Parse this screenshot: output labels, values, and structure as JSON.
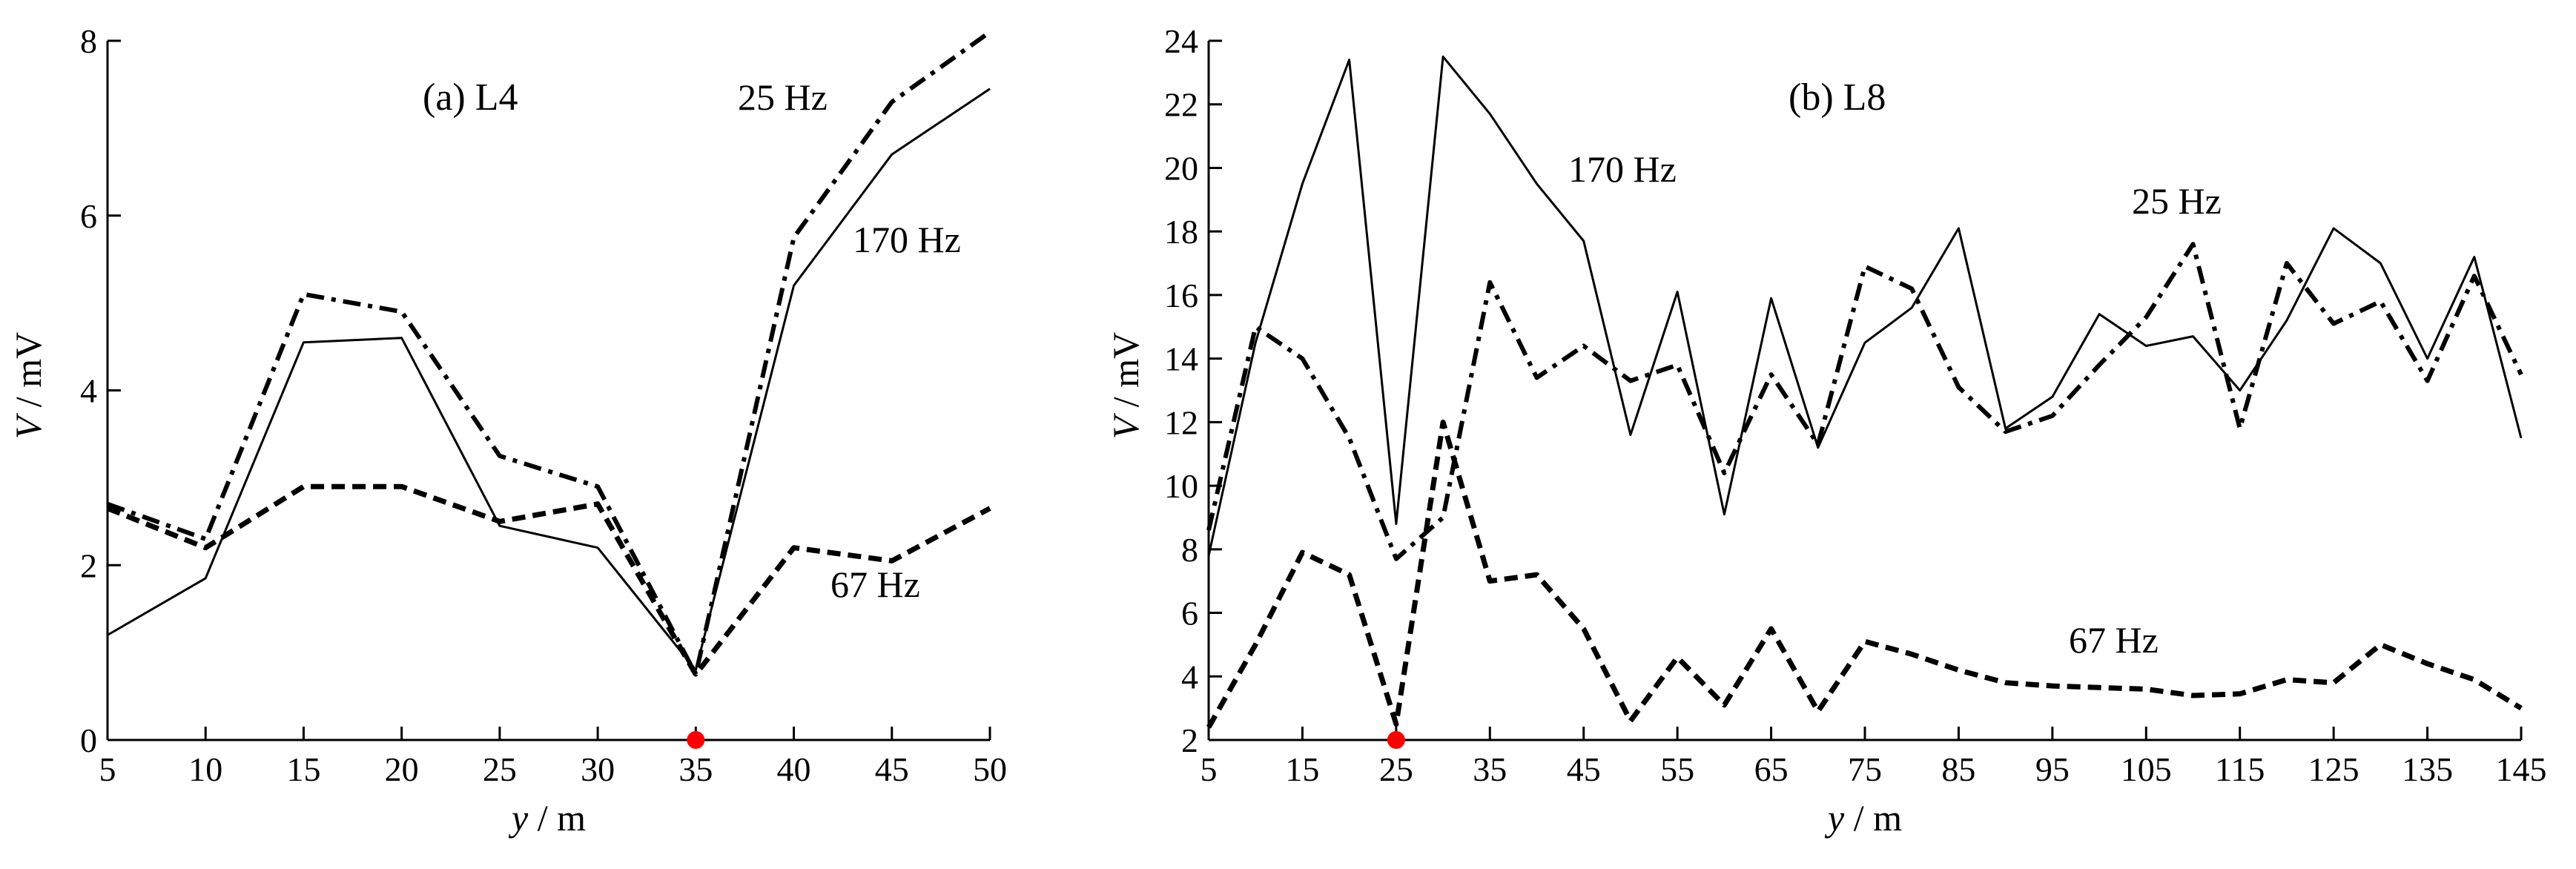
{
  "chart_data": [
    {
      "type": "line",
      "title": "(a) L4",
      "xlabel_var": "y",
      "xlabel_unit": " / m",
      "ylabel_var": "V",
      "ylabel_unit": " / mV",
      "xlim": [
        5,
        50
      ],
      "ylim": [
        0,
        8
      ],
      "xticks": [
        5,
        10,
        15,
        20,
        25,
        30,
        35,
        40,
        45,
        50
      ],
      "yticks": [
        0,
        2,
        4,
        6,
        8
      ],
      "x": [
        5,
        10,
        15,
        20,
        25,
        30,
        35,
        40,
        45,
        50
      ],
      "series": [
        {
          "name": "25 Hz",
          "style": "dashdot",
          "values": [
            2.7,
            2.3,
            5.1,
            4.9,
            3.25,
            2.9,
            0.75,
            5.75,
            7.3,
            8.1
          ]
        },
        {
          "name": "170 Hz",
          "style": "solid",
          "values": [
            1.2,
            1.85,
            4.55,
            4.6,
            2.45,
            2.2,
            0.8,
            5.2,
            6.7,
            7.45
          ]
        },
        {
          "name": "67 Hz",
          "style": "dashed",
          "values": [
            2.65,
            2.2,
            2.9,
            2.9,
            2.5,
            2.7,
            0.75,
            2.2,
            2.05,
            2.65
          ]
        }
      ],
      "marker": {
        "x": 35,
        "y": 0,
        "color": "#ff0000"
      },
      "grid": false,
      "legend": "none"
    },
    {
      "type": "line",
      "title": "(b) L8",
      "xlabel_var": "y",
      "xlabel_unit": " / m",
      "ylabel_var": "V",
      "ylabel_unit": " / mV",
      "xlim": [
        5,
        145
      ],
      "ylim": [
        2,
        24
      ],
      "xticks": [
        5,
        15,
        25,
        35,
        45,
        55,
        65,
        75,
        85,
        95,
        105,
        115,
        125,
        135,
        145
      ],
      "yticks": [
        2,
        4,
        6,
        8,
        10,
        12,
        14,
        16,
        18,
        20,
        22,
        24
      ],
      "x": [
        5,
        10,
        15,
        20,
        25,
        30,
        35,
        40,
        45,
        50,
        55,
        60,
        65,
        70,
        75,
        80,
        85,
        90,
        95,
        100,
        105,
        110,
        115,
        120,
        125,
        130,
        135,
        140,
        145
      ],
      "series": [
        {
          "name": "170 Hz",
          "style": "solid",
          "values": [
            7.8,
            14.5,
            19.5,
            23.4,
            8.8,
            23.5,
            21.7,
            19.5,
            17.7,
            11.6,
            16.1,
            9.1,
            15.9,
            11.2,
            14.5,
            15.6,
            18.1,
            11.8,
            12.8,
            15.4,
            14.4,
            14.7,
            13.0,
            15.2,
            18.1,
            17.0,
            14.0,
            17.2,
            11.5
          ]
        },
        {
          "name": "25 Hz",
          "style": "dashdot",
          "values": [
            8.6,
            15.0,
            14.0,
            11.5,
            7.7,
            9.0,
            16.4,
            13.4,
            14.4,
            13.3,
            13.8,
            10.4,
            13.5,
            11.3,
            16.9,
            16.2,
            13.1,
            11.7,
            12.2,
            13.8,
            15.3,
            17.6,
            11.8,
            17.0,
            15.1,
            15.8,
            13.3,
            16.6,
            13.5
          ]
        },
        {
          "name": "67 Hz",
          "style": "dashed",
          "values": [
            2.4,
            5.0,
            7.9,
            7.2,
            2.5,
            12.0,
            7.0,
            7.2,
            5.5,
            2.6,
            4.6,
            3.1,
            5.5,
            2.9,
            5.1,
            4.7,
            4.2,
            3.8,
            3.7,
            3.65,
            3.6,
            3.4,
            3.45,
            3.9,
            3.8,
            5.0,
            4.4,
            3.9,
            3.0
          ]
        }
      ],
      "marker": {
        "x": 25,
        "y": 2,
        "color": "#ff0000"
      },
      "grid": false,
      "legend": "none"
    }
  ]
}
